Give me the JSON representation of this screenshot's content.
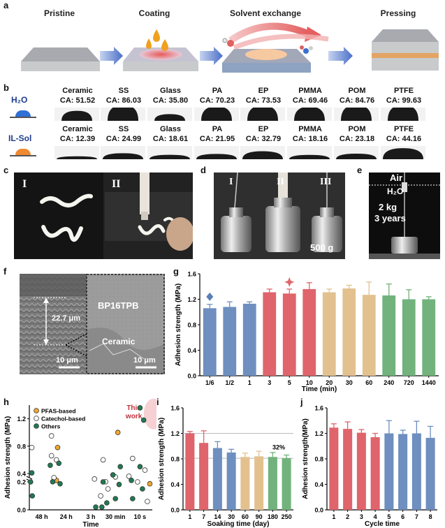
{
  "panel_a": {
    "letter": "a",
    "stages": [
      "Pristine",
      "Coating",
      "Solvent exchange",
      "Pressing"
    ]
  },
  "panel_b": {
    "letter": "b",
    "rows": [
      {
        "liquid": "H₂O",
        "substrates": [
          "Ceramic",
          "SS",
          "Glass",
          "PA",
          "EP",
          "PMMA",
          "POM",
          "PTFE"
        ],
        "values": [
          "CA: 51.52",
          "CA: 86.03",
          "CA: 35.80",
          "CA: 70.23",
          "CA: 73.53",
          "CA: 69.46",
          "CA: 84.76",
          "CA: 99.63"
        ]
      },
      {
        "liquid": "IL-Sol",
        "substrates": [
          "Ceramic",
          "SS",
          "Glass",
          "PA",
          "EP",
          "PMMA",
          "POM",
          "PTFE"
        ],
        "values": [
          "CA: 12.39",
          "CA: 24.99",
          "CA: 18.61",
          "CA: 21.95",
          "CA: 32.79",
          "CA: 18.16",
          "CA: 23.18",
          "CA: 44.16"
        ]
      }
    ],
    "drop_angles": [
      [
        51.52,
        86.03,
        35.8,
        70.23,
        73.53,
        69.46,
        84.76,
        99.63
      ],
      [
        12.39,
        24.99,
        18.61,
        21.95,
        32.79,
        18.16,
        23.18,
        44.16
      ]
    ]
  },
  "panel_c": {
    "letter": "c",
    "labels": [
      "I",
      "II"
    ]
  },
  "panel_d": {
    "letter": "d",
    "labels": [
      "I",
      "II",
      "III"
    ],
    "weight": "500 g"
  },
  "panel_e": {
    "letter": "e",
    "air": "Air",
    "water": "H₂O",
    "load": "2 kg",
    "duration": "3 years"
  },
  "panel_f": {
    "letter": "f",
    "thickness": "22.7 μm",
    "scale_left": "10 μm",
    "scale_right": "10 μm",
    "material": "BP16TPB",
    "substrate": "Ceramic"
  },
  "panel_g": {
    "letter": "g",
    "chart_data": {
      "type": "bar",
      "xlabel": "Time (min)",
      "ylabel": "Adhesion strength (MPa)",
      "ylim": [
        0,
        1.6
      ],
      "yticks": [
        "0.0",
        "0.4",
        "0.8",
        "1.2",
        "1.6"
      ],
      "categories": [
        "1/6",
        "1/2",
        "1",
        "3",
        "5",
        "10",
        "20",
        "30",
        "60",
        "240",
        "720",
        "1440"
      ],
      "values": [
        1.06,
        1.08,
        1.13,
        1.31,
        1.29,
        1.36,
        1.31,
        1.37,
        1.27,
        1.26,
        1.2,
        1.2
      ],
      "errors": [
        0.06,
        0.08,
        0.03,
        0.05,
        0.07,
        0.1,
        0.05,
        0.05,
        0.2,
        0.18,
        0.15,
        0.04
      ],
      "colors": [
        "#6e8fbf",
        "#6e8fbf",
        "#6e8fbf",
        "#e0646b",
        "#e0646b",
        "#e0646b",
        "#e3c18f",
        "#e3c18f",
        "#e3c18f",
        "#72b27c",
        "#72b27c",
        "#72b27c"
      ],
      "markers": [
        {
          "category": "1/6",
          "shape": "diamond",
          "color": "#5a7fb8",
          "y": 1.24
        },
        {
          "category": "5",
          "shape": "star",
          "color": "#e0646b",
          "y": 1.47
        }
      ]
    }
  },
  "panel_h": {
    "letter": "h",
    "chart_data": {
      "type": "scatter",
      "xlabel": "Time",
      "ylabel": "Adhesion strength (MPa)",
      "categories": [
        "48 h",
        "24 h",
        "3 h",
        "30 min",
        "10 s"
      ],
      "yticks": [
        "0.0",
        "0.2",
        "0.4",
        "0.8",
        "1.2"
      ],
      "legend": [
        "PFAS-based",
        "Catechol-based",
        "Others"
      ],
      "legend_colors": [
        "#f0a830",
        "#ffffff",
        "#1f7a52"
      ],
      "annotation": "This work",
      "series": [
        {
          "name": "PFAS-based",
          "points": [
            [
              1.15,
              0.78
            ],
            [
              1.1,
              0.3
            ],
            [
              3.6,
              1.0
            ],
            [
              4.9,
              0.25
            ]
          ]
        },
        {
          "name": "Catechol-based",
          "points": [
            [
              0.1,
              0.78
            ],
            [
              0.9,
              0.95
            ],
            [
              0.9,
              0.66
            ],
            [
              1.1,
              0.6
            ],
            [
              1.0,
              0.34
            ],
            [
              2.65,
              0.32
            ],
            [
              2.9,
              0.1
            ],
            [
              3.1,
              0.28
            ],
            [
              3.2,
              0.15
            ],
            [
              3.0,
              0.6
            ],
            [
              3.5,
              0.35
            ],
            [
              4.05,
              0.36
            ],
            [
              4.4,
              0.2
            ],
            [
              4.2,
              0.62
            ],
            [
              4.8,
              0.06
            ],
            [
              4.7,
              0.45
            ]
          ]
        },
        {
          "name": "Others",
          "points": [
            [
              0.1,
              0.41
            ],
            [
              0.05,
              0.2
            ],
            [
              0.12,
              0.1
            ],
            [
              0.85,
              0.52
            ],
            [
              1.2,
              0.55
            ],
            [
              0.95,
              0.28
            ],
            [
              1.25,
              0.25
            ],
            [
              2.7,
              0.02
            ],
            [
              2.95,
              0.02
            ],
            [
              3.0,
              0.2
            ],
            [
              3.15,
              0.05
            ],
            [
              3.4,
              0.38
            ],
            [
              3.5,
              0.08
            ],
            [
              3.65,
              0.24
            ],
            [
              3.7,
              0.5
            ],
            [
              4.15,
              0.3
            ],
            [
              4.2,
              0.08
            ],
            [
              4.5,
              0.5
            ],
            [
              4.6,
              0.15
            ],
            [
              4.5,
              1.36
            ],
            [
              4.65,
              1.18
            ]
          ]
        }
      ]
    }
  },
  "panel_i": {
    "letter": "i",
    "chart_data": {
      "type": "bar",
      "xlabel": "Soaking time (day)",
      "ylabel": "Adhesion strength (MPa)",
      "ylim": [
        0,
        1.6
      ],
      "yticks": [
        "0.0",
        "0.4",
        "0.8",
        "1.2",
        "1.6"
      ],
      "categories": [
        "1",
        "7",
        "14",
        "30",
        "60",
        "90",
        "180",
        "250"
      ],
      "values": [
        1.2,
        1.05,
        0.97,
        0.9,
        0.83,
        0.84,
        0.83,
        0.81
      ],
      "errors": [
        0.03,
        0.19,
        0.1,
        0.05,
        0.06,
        0.08,
        0.07,
        0.05
      ],
      "colors": [
        "#e0646b",
        "#e0646b",
        "#6e8fbf",
        "#6e8fbf",
        "#e3c18f",
        "#e3c18f",
        "#72b27c",
        "#72b27c"
      ],
      "annotation": "32%",
      "reference_lines": [
        1.2,
        0.81
      ]
    }
  },
  "panel_j": {
    "letter": "j",
    "chart_data": {
      "type": "bar",
      "xlabel": "Cycle time",
      "ylabel": "Adhesion strength(MPa)",
      "ylim": [
        0,
        1.6
      ],
      "yticks": [
        "0.0",
        "0.4",
        "0.8",
        "1.2",
        "1.6"
      ],
      "categories": [
        "1",
        "2",
        "3",
        "4",
        "5",
        "6",
        "7",
        "8"
      ],
      "values": [
        1.29,
        1.27,
        1.21,
        1.14,
        1.2,
        1.19,
        1.2,
        1.13
      ],
      "errors": [
        0.06,
        0.11,
        0.05,
        0.06,
        0.2,
        0.06,
        0.19,
        0.18
      ],
      "colors": [
        "#e0646b",
        "#e0646b",
        "#e0646b",
        "#e0646b",
        "#6e8fbf",
        "#6e8fbf",
        "#6e8fbf",
        "#6e8fbf"
      ]
    }
  }
}
